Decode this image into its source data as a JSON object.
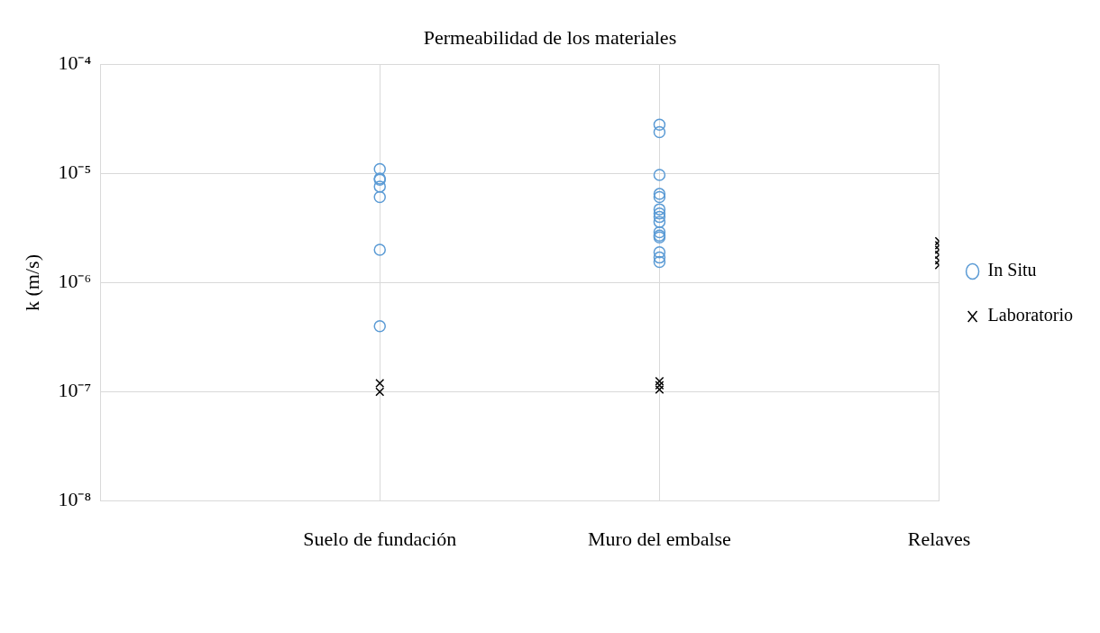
{
  "chart_data": {
    "type": "scatter",
    "title": "Permeabilidad de los materiales",
    "ylabel": "k (m/s)",
    "categories": [
      null,
      "Suelo de fundación",
      "Muro del embalse",
      "Relaves"
    ],
    "log": true,
    "ylim": [
      1e-08,
      0.0001
    ],
    "yticks": [
      {
        "value": 1e-08,
        "label": "10⁻⁸"
      },
      {
        "value": 1e-07,
        "label": "10⁻⁷"
      },
      {
        "value": 1e-06,
        "label": "10⁻⁶"
      },
      {
        "value": 1e-05,
        "label": "10⁻⁵"
      },
      {
        "value": 0.0001,
        "label": "10⁻⁴"
      }
    ],
    "grid": true,
    "legend": "right",
    "series": [
      {
        "name": "In Situ",
        "color": "#5b9bd5",
        "marker": "circle",
        "x": [
          "Suelo de fundación",
          "Suelo de fundación",
          "Suelo de fundación",
          "Suelo de fundación",
          "Suelo de fundación",
          "Suelo de fundación",
          "Suelo de fundación",
          "Muro del embalse",
          "Muro del embalse",
          "Muro del embalse",
          "Muro del embalse",
          "Muro del embalse",
          "Muro del embalse",
          "Muro del embalse",
          "Muro del embalse",
          "Muro del embalse",
          "Muro del embalse",
          "Muro del embalse",
          "Muro del embalse",
          "Muro del embalse",
          "Muro del embalse",
          "Muro del embalse"
        ],
        "values": [
          1.1e-05,
          9e-06,
          8.8e-06,
          7.6e-06,
          6.1e-06,
          2e-06,
          4e-07,
          2.8e-05,
          2.4e-05,
          9.7e-06,
          6.5e-06,
          6.1e-06,
          4.7e-06,
          4.3e-06,
          4e-06,
          3.6e-06,
          2.9e-06,
          2.7e-06,
          2.6e-06,
          1.9e-06,
          1.7e-06,
          1.55e-06
        ]
      },
      {
        "name": "Laboratorio",
        "color": "#000000",
        "marker": "cross",
        "x": [
          "Suelo de fundación",
          "Suelo de fundación",
          "Muro del embalse",
          "Muro del embalse",
          "Muro del embalse",
          "Relaves",
          "Relaves",
          "Relaves",
          "Relaves",
          "Relaves",
          "Relaves"
        ],
        "values": [
          1.2e-07,
          1e-07,
          1.25e-07,
          1.15e-07,
          1.05e-07,
          2.4e-06,
          2.2e-06,
          2e-06,
          1.8e-06,
          1.6e-06,
          1.45e-06
        ]
      }
    ]
  }
}
